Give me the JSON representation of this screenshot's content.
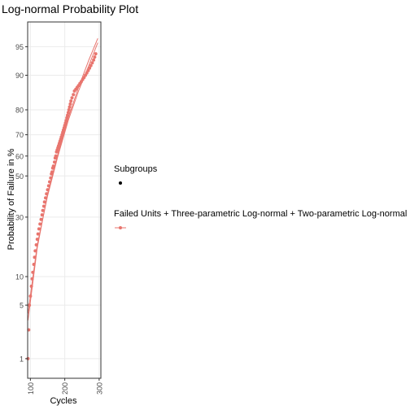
{
  "chart_data": {
    "type": "scatter",
    "title": "Log-normal Probability Plot",
    "xlabel": "Cycles",
    "ylabel": "Probability of Failure in %",
    "x_ticks": [
      100,
      200,
      300
    ],
    "y_ticks": [
      1,
      5,
      10,
      30,
      50,
      60,
      70,
      80,
      90,
      95
    ],
    "xlim": [
      92,
      305
    ],
    "ylim": [
      0.5,
      97.5
    ],
    "x_scale": "linear",
    "y_scale": "lognormal probability",
    "grid": true,
    "legend_placement": "right",
    "colors": {
      "series": "#E8756E",
      "subgroup_key": "#000000",
      "grid": "#EBEBEB",
      "axis": "#333333"
    },
    "legend": [
      {
        "title": "Subgroups",
        "key": "point",
        "label": ""
      },
      {
        "title": "Failed Units + Three-parametric Log-normal + Two-parametric Log-normal",
        "key": "line-point",
        "label": ""
      }
    ],
    "series": [
      {
        "kind": "points",
        "x": [
          93,
          95,
          97,
          100,
          103,
          105,
          107,
          110,
          112,
          114,
          117,
          120,
          122,
          125,
          128,
          131,
          134,
          136,
          139,
          141,
          144,
          147,
          150,
          153,
          156,
          159,
          161,
          163,
          165,
          167,
          170,
          172,
          174,
          176,
          178,
          180,
          182,
          184,
          186,
          188,
          190,
          192,
          194,
          196,
          198,
          200,
          202,
          204,
          206,
          208,
          210,
          212,
          214,
          216,
          218,
          221,
          225,
          228,
          232,
          236,
          240,
          244,
          248,
          252,
          256,
          260,
          264,
          268,
          272,
          276,
          280,
          284,
          287,
          290
        ],
        "y": [
          1.0,
          2.5,
          5.0,
          6.3,
          8.0,
          9.5,
          11,
          13,
          15,
          17,
          19,
          21,
          23,
          25,
          27,
          29,
          31,
          33,
          35,
          37,
          39,
          41,
          43,
          45,
          47,
          49,
          51,
          52,
          54,
          55,
          57,
          59,
          60,
          62,
          63,
          64,
          65,
          66,
          67,
          68,
          69,
          70,
          71,
          72,
          73,
          74,
          75,
          76,
          77,
          78,
          79,
          80,
          81,
          82,
          83,
          84,
          85,
          86,
          86.5,
          87,
          87.5,
          88,
          88.5,
          89,
          89.5,
          90,
          90.5,
          91,
          91.5,
          92,
          92.5,
          93,
          93.5,
          94
        ]
      },
      {
        "kind": "line",
        "x": [
          93,
          120,
          150,
          180,
          210,
          240,
          270,
          296
        ],
        "y": [
          4.0,
          19,
          40,
          60,
          76,
          86,
          92,
          95.5
        ]
      },
      {
        "kind": "line",
        "x": [
          93,
          120,
          150,
          180,
          210,
          240,
          270,
          296
        ],
        "y": [
          3.3,
          18,
          41,
          61,
          77,
          87,
          93,
          96
        ]
      }
    ]
  }
}
